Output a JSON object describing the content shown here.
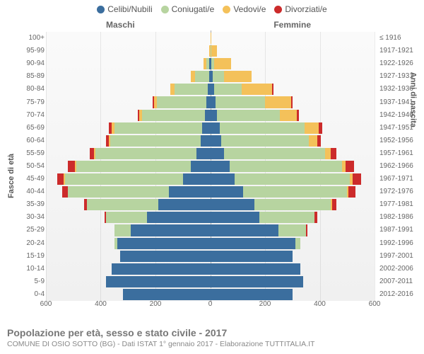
{
  "legend": [
    {
      "label": "Celibi/Nubili",
      "color": "#3b6e9e"
    },
    {
      "label": "Coniugati/e",
      "color": "#b7d4a0"
    },
    {
      "label": "Vedovi/e",
      "color": "#f4c15a"
    },
    {
      "label": "Divorziati/e",
      "color": "#cc2b2b"
    }
  ],
  "gender_labels": {
    "left": "Maschi",
    "right": "Femmine"
  },
  "axis_titles": {
    "left": "Fasce di età",
    "right": "Anni di nascita"
  },
  "x_axis": {
    "max": 600,
    "ticks": [
      600,
      400,
      200,
      0,
      200,
      400,
      600
    ]
  },
  "footer": {
    "title": "Popolazione per età, sesso e stato civile - 2017",
    "sub": "COMUNE DI OSIO SOTTO (BG) - Dati ISTAT 1° gennaio 2017 - Elaborazione TUTTITALIA.IT"
  },
  "background_color": "#ffffff",
  "grid_color": "rgba(0,0,0,0.08)",
  "rows": [
    {
      "age": "100+",
      "birth": "≤ 1916",
      "m": [
        0,
        0,
        0,
        0
      ],
      "f": [
        0,
        0,
        5,
        0
      ]
    },
    {
      "age": "95-99",
      "birth": "1917-1921",
      "m": [
        0,
        0,
        5,
        0
      ],
      "f": [
        0,
        5,
        20,
        0
      ]
    },
    {
      "age": "90-94",
      "birth": "1922-1926",
      "m": [
        5,
        10,
        10,
        0
      ],
      "f": [
        5,
        10,
        60,
        0
      ]
    },
    {
      "age": "85-89",
      "birth": "1927-1931",
      "m": [
        5,
        50,
        15,
        0
      ],
      "f": [
        10,
        40,
        100,
        0
      ]
    },
    {
      "age": "80-84",
      "birth": "1932-1936",
      "m": [
        10,
        120,
        15,
        0
      ],
      "f": [
        15,
        100,
        110,
        5
      ]
    },
    {
      "age": "75-79",
      "birth": "1937-1941",
      "m": [
        15,
        180,
        10,
        5
      ],
      "f": [
        20,
        180,
        95,
        5
      ]
    },
    {
      "age": "70-74",
      "birth": "1942-1946",
      "m": [
        20,
        230,
        10,
        5
      ],
      "f": [
        25,
        230,
        60,
        10
      ]
    },
    {
      "age": "65-69",
      "birth": "1947-1951",
      "m": [
        30,
        320,
        10,
        10
      ],
      "f": [
        35,
        310,
        50,
        15
      ]
    },
    {
      "age": "60-64",
      "birth": "1952-1956",
      "m": [
        35,
        330,
        5,
        10
      ],
      "f": [
        40,
        320,
        30,
        15
      ]
    },
    {
      "age": "55-59",
      "birth": "1957-1961",
      "m": [
        50,
        370,
        5,
        15
      ],
      "f": [
        50,
        370,
        20,
        20
      ]
    },
    {
      "age": "50-54",
      "birth": "1962-1966",
      "m": [
        70,
        420,
        5,
        25
      ],
      "f": [
        70,
        410,
        15,
        30
      ]
    },
    {
      "age": "45-49",
      "birth": "1967-1971",
      "m": [
        100,
        430,
        5,
        25
      ],
      "f": [
        90,
        420,
        10,
        30
      ]
    },
    {
      "age": "40-44",
      "birth": "1972-1976",
      "m": [
        150,
        370,
        0,
        20
      ],
      "f": [
        120,
        380,
        5,
        25
      ]
    },
    {
      "age": "35-39",
      "birth": "1977-1981",
      "m": [
        190,
        260,
        0,
        10
      ],
      "f": [
        160,
        280,
        5,
        15
      ]
    },
    {
      "age": "30-34",
      "birth": "1982-1986",
      "m": [
        230,
        150,
        0,
        5
      ],
      "f": [
        180,
        200,
        0,
        10
      ]
    },
    {
      "age": "25-29",
      "birth": "1987-1991",
      "m": [
        290,
        60,
        0,
        0
      ],
      "f": [
        250,
        100,
        0,
        5
      ]
    },
    {
      "age": "20-24",
      "birth": "1992-1996",
      "m": [
        340,
        10,
        0,
        0
      ],
      "f": [
        310,
        20,
        0,
        0
      ]
    },
    {
      "age": "15-19",
      "birth": "1997-2001",
      "m": [
        330,
        0,
        0,
        0
      ],
      "f": [
        300,
        0,
        0,
        0
      ]
    },
    {
      "age": "10-14",
      "birth": "2002-2006",
      "m": [
        360,
        0,
        0,
        0
      ],
      "f": [
        330,
        0,
        0,
        0
      ]
    },
    {
      "age": "5-9",
      "birth": "2007-2011",
      "m": [
        380,
        0,
        0,
        0
      ],
      "f": [
        340,
        0,
        0,
        0
      ]
    },
    {
      "age": "0-4",
      "birth": "2012-2016",
      "m": [
        320,
        0,
        0,
        0
      ],
      "f": [
        300,
        0,
        0,
        0
      ]
    }
  ]
}
